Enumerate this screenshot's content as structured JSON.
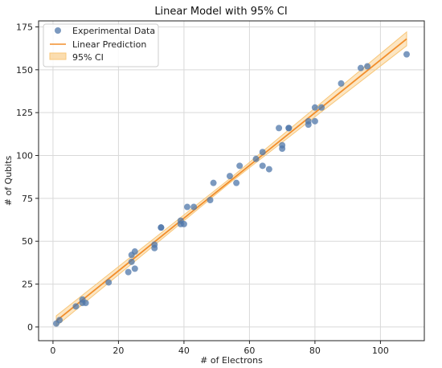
{
  "chart_data": {
    "type": "scatter",
    "title": "Linear Model with 95% CI",
    "xlabel": "# of Electrons",
    "ylabel": "# of Qubits",
    "xlim": [
      -4.4,
      113.4
    ],
    "ylim": [
      -8,
      178.5
    ],
    "xticks": [
      0,
      20,
      40,
      60,
      80,
      100
    ],
    "yticks": [
      0,
      25,
      50,
      75,
      100,
      125,
      150,
      175
    ],
    "grid": true,
    "legend_position": "top-left",
    "legend": {
      "scatter": "Experimental Data",
      "line": "Linear Prediction",
      "band": "95% CI"
    },
    "colors": {
      "points": "#4f77aa",
      "line": "#f28e2b",
      "band": "#f8c77a",
      "grid": "#d9d9d9"
    },
    "series": [
      {
        "name": "Experimental Data",
        "kind": "scatter",
        "points": [
          [
            1,
            2
          ],
          [
            2,
            4
          ],
          [
            7,
            12
          ],
          [
            9,
            14
          ],
          [
            9,
            16
          ],
          [
            10,
            14
          ],
          [
            17,
            26
          ],
          [
            23,
            32
          ],
          [
            24,
            38
          ],
          [
            24,
            42
          ],
          [
            25,
            44
          ],
          [
            25,
            34
          ],
          [
            31,
            46
          ],
          [
            31,
            48
          ],
          [
            33,
            58
          ],
          [
            33,
            58
          ],
          [
            39,
            62
          ],
          [
            39,
            60
          ],
          [
            40,
            60
          ],
          [
            41,
            70
          ],
          [
            43,
            70
          ],
          [
            48,
            74
          ],
          [
            49,
            84
          ],
          [
            54,
            88
          ],
          [
            56,
            84
          ],
          [
            57,
            94
          ],
          [
            62,
            98
          ],
          [
            64,
            94
          ],
          [
            64,
            102
          ],
          [
            66,
            92
          ],
          [
            69,
            116
          ],
          [
            70,
            104
          ],
          [
            70,
            106
          ],
          [
            72,
            116
          ],
          [
            72,
            116
          ],
          [
            78,
            118
          ],
          [
            78,
            120
          ],
          [
            80,
            120
          ],
          [
            80,
            128
          ],
          [
            82,
            128
          ],
          [
            88,
            142
          ],
          [
            94,
            151
          ],
          [
            96,
            152
          ],
          [
            108,
            159
          ]
        ]
      },
      {
        "name": "Linear Prediction",
        "kind": "line",
        "x": [
          1,
          108
        ],
        "y": [
          3.5,
          168
        ]
      },
      {
        "name": "95% CI",
        "kind": "band",
        "x": [
          1,
          54,
          108
        ],
        "lower": [
          0.5,
          84.0,
          164.0
        ],
        "upper": [
          6.5,
          86.5,
          172.0
        ]
      }
    ]
  }
}
